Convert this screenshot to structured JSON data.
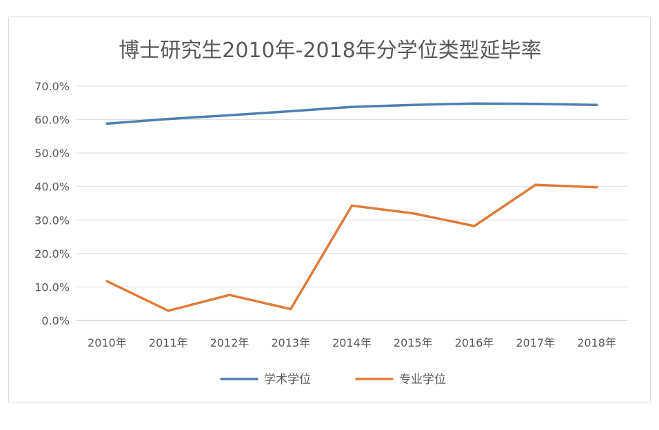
{
  "chart_data": {
    "type": "line",
    "title": "博士研究生2010年-2018年分学位类型延毕率",
    "categories": [
      "2010年",
      "2011年",
      "2012年",
      "2013年",
      "2014年",
      "2015年",
      "2016年",
      "2017年",
      "2018年"
    ],
    "y_ticks": [
      "0.0%",
      "10.0%",
      "20.0%",
      "30.0%",
      "40.0%",
      "50.0%",
      "60.0%",
      "70.0%"
    ],
    "ylim": [
      0,
      70
    ],
    "grid": true,
    "legend_position": "bottom",
    "series": [
      {
        "name": "学术学位",
        "color": "#4e7fb0",
        "values": [
          58.8,
          60.2,
          61.3,
          62.5,
          63.8,
          64.4,
          64.8,
          64.7,
          64.4
        ]
      },
      {
        "name": "专业学位",
        "color": "#e07b39",
        "values": [
          11.7,
          2.9,
          7.6,
          3.4,
          34.3,
          32.0,
          28.2,
          40.5,
          39.8
        ]
      }
    ]
  }
}
